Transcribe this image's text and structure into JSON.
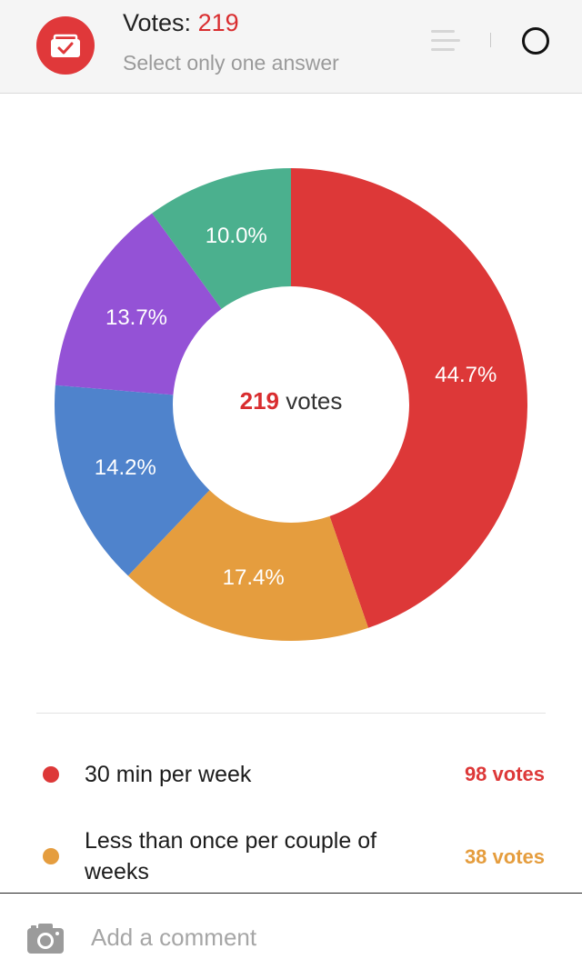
{
  "header": {
    "votes_label": "Votes:",
    "votes_count": "219",
    "subtitle": "Select only one answer",
    "badge_icon": "ballot-box-icon",
    "sort_icon": "sort-lines-icon",
    "status_icon": "ring-icon",
    "accent_color": "#e0383a"
  },
  "chart_data": {
    "type": "pie",
    "variant": "donut",
    "center_label": {
      "count": "219",
      "unit": "votes"
    },
    "slices": [
      {
        "label": "44.7%",
        "value": 44.7,
        "color": "#dd3838"
      },
      {
        "label": "17.4%",
        "value": 17.4,
        "color": "#e59d3e"
      },
      {
        "label": "14.2%",
        "value": 14.2,
        "color": "#4f83cc"
      },
      {
        "label": "13.7%",
        "value": 13.7,
        "color": "#9452d6"
      },
      {
        "label": "10.0%",
        "value": 10.0,
        "color": "#4bb08e"
      }
    ]
  },
  "answers": [
    {
      "label": "30 min per week",
      "count": "98 votes",
      "color": "#dd3838"
    },
    {
      "label": "Less than once per couple of weeks",
      "count": "38 votes",
      "color": "#e59d3e"
    }
  ],
  "comment": {
    "placeholder": "Add a comment",
    "camera_icon": "camera-icon"
  }
}
